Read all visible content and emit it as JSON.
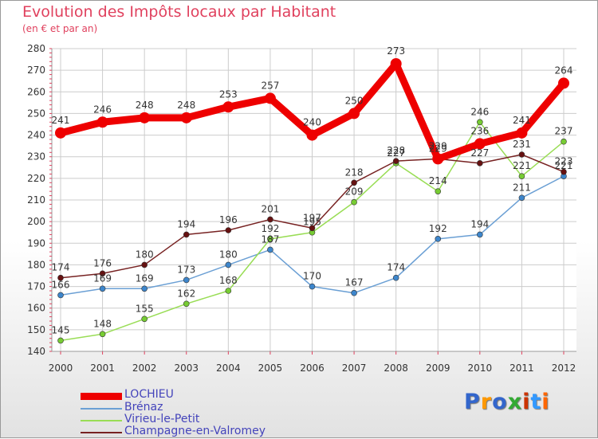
{
  "header": {
    "title": "Evolution des Impôts locaux par Habitant",
    "subtitle": "(en € et par an)"
  },
  "logo": {
    "text": "Proxiti"
  },
  "chart_data": {
    "type": "line",
    "title": "Evolution des Impôts locaux par Habitant",
    "subtitle": "(en € et par an)",
    "xlabel": "",
    "ylabel": "",
    "ylim": [
      140,
      280
    ],
    "yticks": [
      140,
      150,
      160,
      170,
      180,
      190,
      200,
      210,
      220,
      230,
      240,
      250,
      260,
      270,
      280
    ],
    "grid": true,
    "legend_position": "bottom-left",
    "categories": [
      "2000",
      "2001",
      "2002",
      "2003",
      "2004",
      "2005",
      "2006",
      "2007",
      "2008",
      "2009",
      "2010",
      "2011",
      "2012"
    ],
    "series": [
      {
        "name": "LOCHIEU",
        "color": "#ee0000",
        "marker": "#ee0000",
        "values": [
          241,
          246,
          248,
          248,
          253,
          257,
          240,
          250,
          273,
          229,
          236,
          241,
          264
        ]
      },
      {
        "name": "Brénaz",
        "color": "#6a9fd4",
        "marker": "#3d86cc",
        "values": [
          166,
          169,
          169,
          173,
          180,
          187,
          170,
          167,
          174,
          192,
          194,
          211,
          221
        ]
      },
      {
        "name": "Virieu-le-Petit",
        "color": "#99dd55",
        "marker": "#77cc33",
        "values": [
          145,
          148,
          155,
          162,
          168,
          192,
          195,
          209,
          227,
          214,
          246,
          221,
          237
        ]
      },
      {
        "name": "Champagne-en-Valromey",
        "color": "#772222",
        "marker": "#661111",
        "values": [
          174,
          176,
          180,
          194,
          196,
          201,
          197,
          218,
          228,
          229,
          227,
          231,
          223
        ]
      }
    ]
  }
}
